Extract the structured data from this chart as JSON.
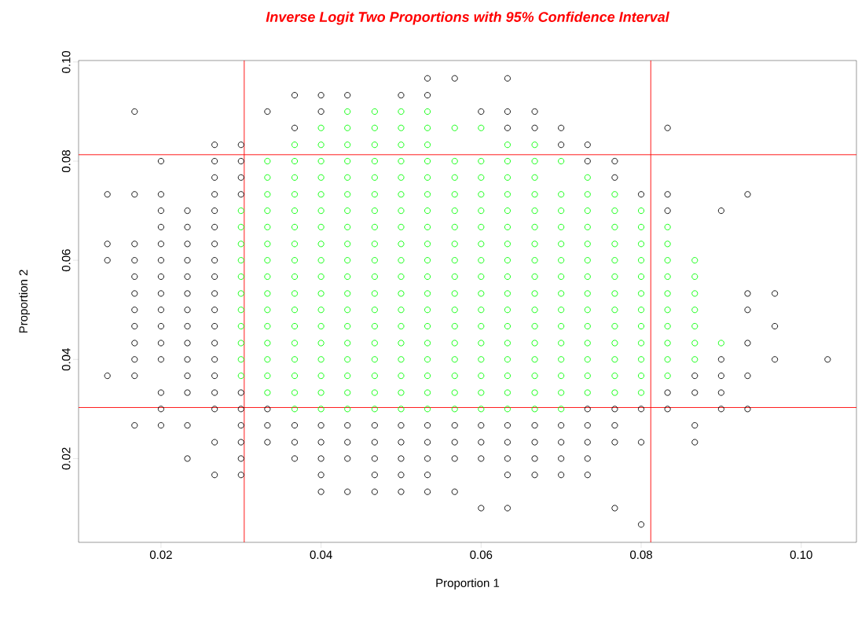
{
  "chart_data": {
    "type": "scatter",
    "title": "Inverse Logit Two Proportions with 95% Confidence Interval",
    "xlabel": "Proportion 1",
    "ylabel": "Proportion 2",
    "xlim": [
      0.0097,
      0.1069
    ],
    "ylim": [
      0.0031,
      0.1003
    ],
    "xticks": [
      0.02,
      0.04,
      0.06,
      0.08,
      {
        "value": 0.1,
        "label": "0.10"
      }
    ],
    "yticks": [
      0.02,
      0.04,
      0.06,
      0.08,
      {
        "value": 0.1,
        "label": "0.10"
      }
    ],
    "marker": "circle",
    "grid": false,
    "ref_lines": [
      {
        "axis": "x",
        "value": 0.0304,
        "color": "#ff0000"
      },
      {
        "axis": "x",
        "value": 0.0812,
        "color": "#ff0000"
      },
      {
        "axis": "y",
        "value": 0.0303,
        "color": "#ff0000"
      },
      {
        "axis": "y",
        "value": 0.0813,
        "color": "#ff0000"
      }
    ],
    "series": [
      {
        "color": "#00ff00",
        "x": [
          0.03,
          0.03,
          0.03,
          0.03,
          0.03,
          0.03,
          0.03,
          0.03,
          0.03,
          0.03,
          0.03,
          0.0333,
          0.0333,
          0.0333,
          0.0333,
          0.0333,
          0.0333,
          0.0333,
          0.0333,
          0.0333,
          0.0333,
          0.0333,
          0.0333,
          0.0333,
          0.0333,
          0.0333,
          0.0367,
          0.0367,
          0.0367,
          0.0367,
          0.0367,
          0.0367,
          0.0367,
          0.0367,
          0.0367,
          0.0367,
          0.0367,
          0.0367,
          0.0367,
          0.0367,
          0.0367,
          0.0367,
          0.0367,
          0.04,
          0.04,
          0.04,
          0.04,
          0.04,
          0.04,
          0.04,
          0.04,
          0.04,
          0.04,
          0.04,
          0.04,
          0.04,
          0.04,
          0.04,
          0.04,
          0.04,
          0.04,
          0.0433,
          0.0433,
          0.0433,
          0.0433,
          0.0433,
          0.0433,
          0.0433,
          0.0433,
          0.0433,
          0.0433,
          0.0433,
          0.0433,
          0.0433,
          0.0433,
          0.0433,
          0.0433,
          0.0433,
          0.0433,
          0.0433,
          0.0467,
          0.0467,
          0.0467,
          0.0467,
          0.0467,
          0.0467,
          0.0467,
          0.0467,
          0.0467,
          0.0467,
          0.0467,
          0.0467,
          0.0467,
          0.0467,
          0.0467,
          0.0467,
          0.0467,
          0.0467,
          0.0467,
          0.05,
          0.05,
          0.05,
          0.05,
          0.05,
          0.05,
          0.05,
          0.05,
          0.05,
          0.05,
          0.05,
          0.05,
          0.05,
          0.05,
          0.05,
          0.05,
          0.05,
          0.05,
          0.05,
          0.0533,
          0.0533,
          0.0533,
          0.0533,
          0.0533,
          0.0533,
          0.0533,
          0.0533,
          0.0533,
          0.0533,
          0.0533,
          0.0533,
          0.0533,
          0.0533,
          0.0533,
          0.0533,
          0.0533,
          0.0533,
          0.0533,
          0.0567,
          0.0567,
          0.0567,
          0.0567,
          0.0567,
          0.0567,
          0.0567,
          0.0567,
          0.0567,
          0.0567,
          0.0567,
          0.0567,
          0.0567,
          0.0567,
          0.0567,
          0.0567,
          0.0567,
          0.06,
          0.06,
          0.06,
          0.06,
          0.06,
          0.06,
          0.06,
          0.06,
          0.06,
          0.06,
          0.06,
          0.06,
          0.06,
          0.06,
          0.06,
          0.06,
          0.06,
          0.0633,
          0.0633,
          0.0633,
          0.0633,
          0.0633,
          0.0633,
          0.0633,
          0.0633,
          0.0633,
          0.0633,
          0.0633,
          0.0633,
          0.0633,
          0.0633,
          0.0633,
          0.0633,
          0.0633,
          0.0667,
          0.0667,
          0.0667,
          0.0667,
          0.0667,
          0.0667,
          0.0667,
          0.0667,
          0.0667,
          0.0667,
          0.0667,
          0.0667,
          0.0667,
          0.0667,
          0.0667,
          0.0667,
          0.0667,
          0.07,
          0.07,
          0.07,
          0.07,
          0.07,
          0.07,
          0.07,
          0.07,
          0.07,
          0.07,
          0.07,
          0.07,
          0.07,
          0.07,
          0.07,
          0.0733,
          0.0733,
          0.0733,
          0.0733,
          0.0733,
          0.0733,
          0.0733,
          0.0733,
          0.0733,
          0.0733,
          0.0733,
          0.0733,
          0.0733,
          0.0733,
          0.0767,
          0.0767,
          0.0767,
          0.0767,
          0.0767,
          0.0767,
          0.0767,
          0.0767,
          0.0767,
          0.0767,
          0.0767,
          0.0767,
          0.0767,
          0.08,
          0.08,
          0.08,
          0.08,
          0.08,
          0.08,
          0.08,
          0.08,
          0.08,
          0.08,
          0.08,
          0.08,
          0.0833,
          0.0833,
          0.0833,
          0.0833,
          0.0833,
          0.0833,
          0.0833,
          0.0833,
          0.0833,
          0.0833,
          0.0867,
          0.0867,
          0.0867,
          0.0867,
          0.0867,
          0.0867,
          0.0867,
          0.09
        ],
        "values": [
          0.07,
          0.0667,
          0.0633,
          0.06,
          0.0567,
          0.0533,
          0.05,
          0.0467,
          0.0433,
          0.04,
          0.0367,
          0.08,
          0.0767,
          0.0733,
          0.07,
          0.0667,
          0.0633,
          0.06,
          0.0567,
          0.0533,
          0.05,
          0.0467,
          0.0433,
          0.04,
          0.0367,
          0.0333,
          0.0833,
          0.08,
          0.0767,
          0.0733,
          0.07,
          0.0667,
          0.0633,
          0.06,
          0.0567,
          0.0533,
          0.05,
          0.0467,
          0.0433,
          0.04,
          0.0367,
          0.0333,
          0.03,
          0.0867,
          0.0833,
          0.08,
          0.0767,
          0.0733,
          0.07,
          0.0667,
          0.0633,
          0.06,
          0.0567,
          0.0533,
          0.05,
          0.0467,
          0.0433,
          0.04,
          0.0367,
          0.0333,
          0.03,
          0.09,
          0.0867,
          0.0833,
          0.08,
          0.0767,
          0.0733,
          0.07,
          0.0667,
          0.0633,
          0.06,
          0.0567,
          0.0533,
          0.05,
          0.0467,
          0.0433,
          0.04,
          0.0367,
          0.0333,
          0.03,
          0.09,
          0.0867,
          0.0833,
          0.08,
          0.0767,
          0.0733,
          0.07,
          0.0667,
          0.0633,
          0.06,
          0.0567,
          0.0533,
          0.05,
          0.0467,
          0.0433,
          0.04,
          0.0367,
          0.0333,
          0.03,
          0.09,
          0.0867,
          0.0833,
          0.08,
          0.0767,
          0.0733,
          0.07,
          0.0667,
          0.0633,
          0.06,
          0.0567,
          0.0533,
          0.05,
          0.0467,
          0.0433,
          0.04,
          0.0367,
          0.0333,
          0.03,
          0.09,
          0.0867,
          0.0833,
          0.08,
          0.0767,
          0.0733,
          0.07,
          0.0667,
          0.0633,
          0.06,
          0.0567,
          0.0533,
          0.05,
          0.0467,
          0.0433,
          0.04,
          0.0367,
          0.0333,
          0.03,
          0.0867,
          0.08,
          0.0767,
          0.0733,
          0.07,
          0.0667,
          0.0633,
          0.06,
          0.0567,
          0.0533,
          0.05,
          0.0467,
          0.0433,
          0.04,
          0.0367,
          0.0333,
          0.03,
          0.0867,
          0.08,
          0.0767,
          0.0733,
          0.07,
          0.0667,
          0.0633,
          0.06,
          0.0567,
          0.0533,
          0.05,
          0.0467,
          0.0433,
          0.04,
          0.0367,
          0.0333,
          0.03,
          0.0833,
          0.08,
          0.0767,
          0.0733,
          0.07,
          0.0667,
          0.0633,
          0.06,
          0.0567,
          0.0533,
          0.05,
          0.0467,
          0.0433,
          0.04,
          0.0367,
          0.0333,
          0.03,
          0.0833,
          0.08,
          0.0767,
          0.0733,
          0.07,
          0.0667,
          0.0633,
          0.06,
          0.0567,
          0.0533,
          0.05,
          0.0467,
          0.0433,
          0.04,
          0.0367,
          0.0333,
          0.03,
          0.08,
          0.0733,
          0.07,
          0.0667,
          0.0633,
          0.06,
          0.0567,
          0.0533,
          0.05,
          0.0467,
          0.0433,
          0.04,
          0.0367,
          0.0333,
          0.03,
          0.0767,
          0.0733,
          0.07,
          0.0667,
          0.0633,
          0.06,
          0.0567,
          0.0533,
          0.05,
          0.0467,
          0.0433,
          0.04,
          0.0367,
          0.0333,
          0.0733,
          0.07,
          0.0667,
          0.0633,
          0.06,
          0.0567,
          0.0533,
          0.05,
          0.0467,
          0.0433,
          0.04,
          0.0367,
          0.0333,
          0.07,
          0.0667,
          0.0633,
          0.06,
          0.0567,
          0.0533,
          0.05,
          0.0467,
          0.0433,
          0.04,
          0.0367,
          0.0333,
          0.0667,
          0.0633,
          0.06,
          0.0567,
          0.0533,
          0.05,
          0.0467,
          0.0433,
          0.04,
          0.0367,
          0.06,
          0.0567,
          0.0533,
          0.05,
          0.0467,
          0.0433,
          0.04,
          0.0433
        ]
      },
      {
        "color": "#000000",
        "x": [
          0.0133,
          0.0133,
          0.0133,
          0.0133,
          0.0167,
          0.0167,
          0.0167,
          0.0167,
          0.0167,
          0.0167,
          0.0167,
          0.0167,
          0.0167,
          0.0167,
          0.0167,
          0.0167,
          0.02,
          0.02,
          0.02,
          0.02,
          0.02,
          0.02,
          0.02,
          0.02,
          0.02,
          0.02,
          0.02,
          0.02,
          0.02,
          0.02,
          0.02,
          0.0233,
          0.0233,
          0.0233,
          0.0233,
          0.0233,
          0.0233,
          0.0233,
          0.0233,
          0.0233,
          0.0233,
          0.0233,
          0.0233,
          0.0233,
          0.0233,
          0.0267,
          0.0267,
          0.0267,
          0.0267,
          0.0267,
          0.0267,
          0.0267,
          0.0267,
          0.0267,
          0.0267,
          0.0267,
          0.0267,
          0.0267,
          0.0267,
          0.0267,
          0.0267,
          0.0267,
          0.0267,
          0.0267,
          0.03,
          0.03,
          0.03,
          0.03,
          0.03,
          0.03,
          0.03,
          0.03,
          0.03,
          0.03,
          0.0333,
          0.0333,
          0.0333,
          0.0333,
          0.0367,
          0.0367,
          0.0367,
          0.0367,
          0.0367,
          0.04,
          0.04,
          0.04,
          0.04,
          0.04,
          0.04,
          0.04,
          0.0433,
          0.0433,
          0.0433,
          0.0433,
          0.0433,
          0.0467,
          0.0467,
          0.0467,
          0.0467,
          0.0467,
          0.05,
          0.05,
          0.05,
          0.05,
          0.05,
          0.05,
          0.0533,
          0.0533,
          0.0533,
          0.0533,
          0.0533,
          0.0533,
          0.0533,
          0.0567,
          0.0567,
          0.0567,
          0.0567,
          0.0567,
          0.06,
          0.06,
          0.06,
          0.06,
          0.06,
          0.0633,
          0.0633,
          0.0633,
          0.0633,
          0.0633,
          0.0633,
          0.0633,
          0.0633,
          0.0667,
          0.0667,
          0.0667,
          0.0667,
          0.0667,
          0.0667,
          0.07,
          0.07,
          0.07,
          0.07,
          0.07,
          0.07,
          0.0733,
          0.0733,
          0.0733,
          0.0733,
          0.0733,
          0.0733,
          0.0733,
          0.0767,
          0.0767,
          0.0767,
          0.0767,
          0.0767,
          0.0767,
          0.08,
          0.08,
          0.08,
          0.08,
          0.0833,
          0.0833,
          0.0833,
          0.0833,
          0.0833,
          0.0867,
          0.0867,
          0.0867,
          0.0867,
          0.09,
          0.09,
          0.09,
          0.09,
          0.09,
          0.0933,
          0.0933,
          0.0933,
          0.0933,
          0.0933,
          0.0933,
          0.0967,
          0.0967,
          0.0967,
          0.1033
        ],
        "values": [
          0.0733,
          0.0633,
          0.06,
          0.0367,
          0.09,
          0.0733,
          0.0633,
          0.06,
          0.0567,
          0.0533,
          0.05,
          0.0467,
          0.0433,
          0.04,
          0.0367,
          0.0267,
          0.08,
          0.0733,
          0.07,
          0.0667,
          0.0633,
          0.06,
          0.0567,
          0.0533,
          0.05,
          0.0467,
          0.0433,
          0.04,
          0.0333,
          0.03,
          0.0267,
          0.07,
          0.0667,
          0.0633,
          0.06,
          0.0567,
          0.0533,
          0.05,
          0.0467,
          0.0433,
          0.04,
          0.0367,
          0.0333,
          0.0267,
          0.02,
          0.0833,
          0.08,
          0.0767,
          0.0733,
          0.07,
          0.0667,
          0.0633,
          0.06,
          0.0567,
          0.0533,
          0.05,
          0.0467,
          0.0433,
          0.04,
          0.0367,
          0.0333,
          0.03,
          0.0233,
          0.0167,
          0.0833,
          0.08,
          0.0767,
          0.0733,
          0.0333,
          0.03,
          0.0267,
          0.0233,
          0.02,
          0.0167,
          0.09,
          0.03,
          0.0267,
          0.0233,
          0.0933,
          0.0867,
          0.0267,
          0.0233,
          0.02,
          0.0933,
          0.09,
          0.0267,
          0.0233,
          0.02,
          0.0167,
          0.0133,
          0.0933,
          0.0267,
          0.0233,
          0.02,
          0.0133,
          0.0267,
          0.0233,
          0.02,
          0.0167,
          0.0133,
          0.0933,
          0.0267,
          0.0233,
          0.02,
          0.0167,
          0.0133,
          0.0967,
          0.0933,
          0.0267,
          0.0233,
          0.02,
          0.0167,
          0.0133,
          0.0967,
          0.0267,
          0.0233,
          0.02,
          0.0133,
          0.09,
          0.0267,
          0.0233,
          0.02,
          0.01,
          0.0967,
          0.09,
          0.0867,
          0.0267,
          0.0233,
          0.02,
          0.0167,
          0.01,
          0.09,
          0.0867,
          0.0267,
          0.0233,
          0.02,
          0.0167,
          0.0867,
          0.0833,
          0.0267,
          0.0233,
          0.02,
          0.0167,
          0.0833,
          0.08,
          0.03,
          0.0267,
          0.0233,
          0.02,
          0.0167,
          0.08,
          0.0767,
          0.03,
          0.0267,
          0.0233,
          0.01,
          0.0733,
          0.03,
          0.0233,
          0.0067,
          0.0867,
          0.0733,
          0.07,
          0.0333,
          0.03,
          0.0367,
          0.0333,
          0.0267,
          0.0233,
          0.07,
          0.04,
          0.0367,
          0.0333,
          0.03,
          0.0733,
          0.0533,
          0.05,
          0.0433,
          0.0367,
          0.03,
          0.0533,
          0.0467,
          0.04,
          0.04
        ]
      }
    ]
  }
}
